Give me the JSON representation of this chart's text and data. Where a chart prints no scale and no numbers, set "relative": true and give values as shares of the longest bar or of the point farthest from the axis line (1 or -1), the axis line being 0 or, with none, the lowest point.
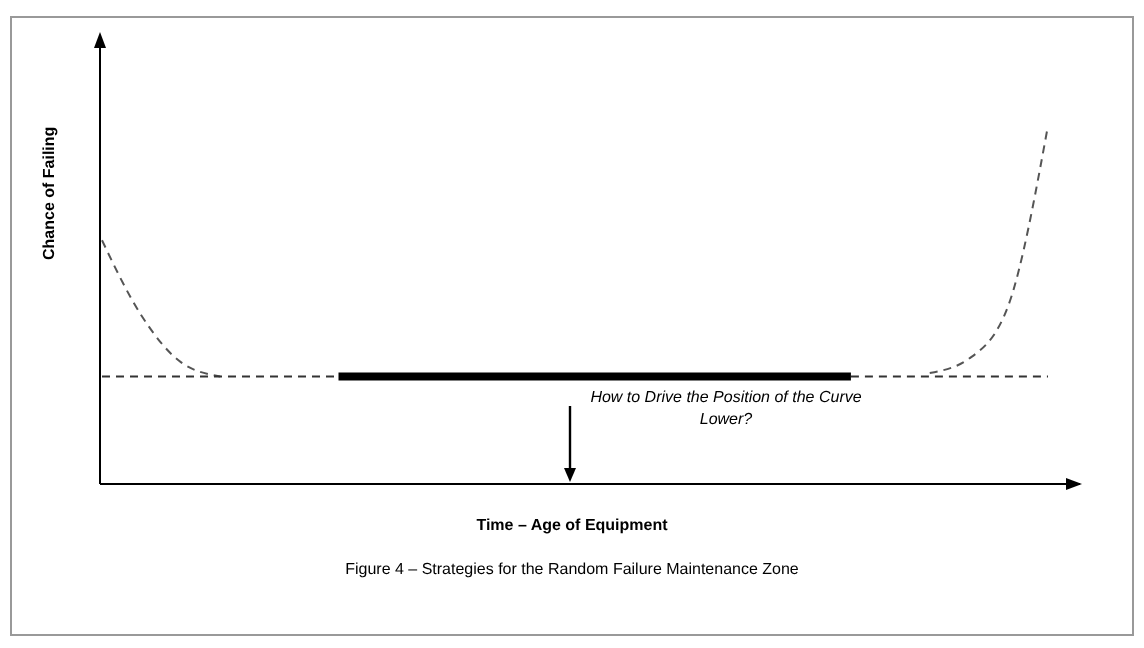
{
  "chart_data": {
    "type": "line",
    "relative": true,
    "xlabel": "Time – Age of Equipment",
    "ylabel": "Chance of Failing",
    "categories": [
      null,
      null,
      null,
      null,
      null,
      null,
      null,
      null,
      null,
      null,
      null,
      null,
      null,
      null,
      null,
      null,
      null,
      null,
      null,
      null,
      null,
      null,
      null,
      null,
      null
    ],
    "marker": "none",
    "series": [
      {
        "color": "#555555",
        "line_style": "dashed",
        "values": [
          0.68,
          0.47,
          0.34,
          0.3,
          null,
          null,
          null,
          null,
          null,
          null,
          null,
          null,
          null,
          null,
          null,
          null,
          null,
          null,
          null,
          null,
          null,
          null,
          null,
          null,
          null
        ]
      },
      {
        "color": "#333333",
        "line_style": "dashed",
        "values": [
          0.3,
          0.3,
          0.3,
          0.3,
          0.3,
          0.3,
          0.3,
          null,
          null,
          null,
          null,
          null,
          null,
          null,
          null,
          null,
          null,
          null,
          null,
          0.3,
          0.3,
          0.3,
          0.3,
          0.3,
          0.3
        ]
      },
      {
        "color": "#000000",
        "line_style": "solid",
        "values": [
          null,
          null,
          null,
          null,
          null,
          null,
          0.3,
          0.3,
          0.3,
          0.3,
          0.3,
          0.3,
          0.3,
          0.3,
          0.3,
          0.3,
          0.3,
          0.3,
          0.3,
          0.3,
          null,
          null,
          null,
          null,
          null
        ]
      },
      {
        "color": "#555555",
        "line_style": "dashed",
        "values": [
          null,
          null,
          null,
          null,
          null,
          null,
          null,
          null,
          null,
          null,
          null,
          null,
          null,
          null,
          null,
          null,
          null,
          null,
          null,
          null,
          null,
          0.31,
          0.35,
          0.5,
          1
        ]
      }
    ],
    "annotations": [
      "How to Drive the Position of the Curve Lower?",
      "Figure 4 – Strategies for the Random Failure Maintenance Zone"
    ]
  }
}
